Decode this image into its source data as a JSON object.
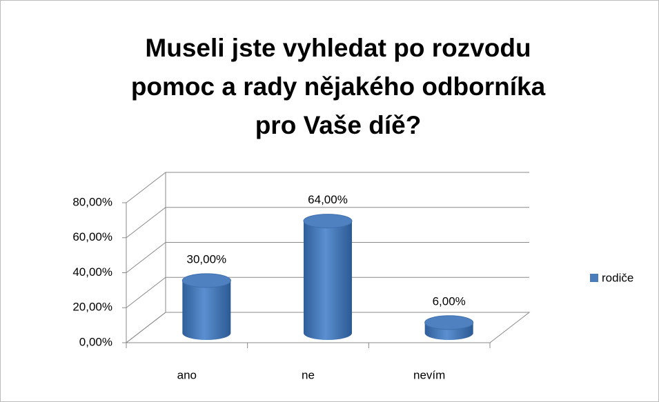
{
  "chart_data": {
    "type": "bar",
    "title": [
      "Museli jste vyhledat po rozvodu",
      "pomoc a rady nějakého odborníka",
      "pro Vaše díě?"
    ],
    "categories": [
      "ano",
      "ne",
      "nevím"
    ],
    "series": [
      {
        "name": "rodiče",
        "color": "#4a7ebb",
        "values": [
          30,
          64,
          6
        ],
        "value_labels": [
          "30,00%",
          "64,00%",
          "6,00%"
        ]
      }
    ],
    "ylim": [
      0,
      80
    ],
    "yticks": [
      {
        "value": 0,
        "label": "0,00%"
      },
      {
        "value": 20,
        "label": "20,00%"
      },
      {
        "value": 40,
        "label": "40,00%"
      },
      {
        "value": 60,
        "label": "60,00%"
      },
      {
        "value": 80,
        "label": "80,00%"
      }
    ],
    "grid": true,
    "legend": "right"
  }
}
